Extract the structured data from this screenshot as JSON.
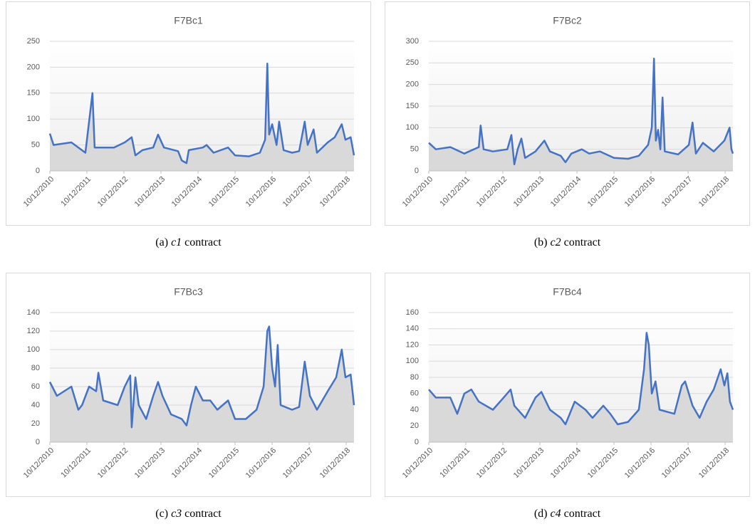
{
  "chart_data": [
    {
      "type": "line",
      "title": "F7Bc1",
      "caption": {
        "label": "(a)",
        "italic": "c1",
        "text": "contract"
      },
      "ylim": [
        0,
        250
      ],
      "yticks": [
        0,
        50,
        100,
        150,
        200,
        250
      ],
      "xlim": [
        2010.78,
        2018.99
      ],
      "xticks": [
        {
          "value": 2010.78,
          "label": "10/12/2010"
        },
        {
          "value": 2011.78,
          "label": "10/12/2011"
        },
        {
          "value": 2012.78,
          "label": "10/12/2012"
        },
        {
          "value": 2013.78,
          "label": "10/12/2013"
        },
        {
          "value": 2014.78,
          "label": "10/12/2014"
        },
        {
          "value": 2015.78,
          "label": "10/12/2015"
        },
        {
          "value": 2016.78,
          "label": "10/12/2016"
        },
        {
          "value": 2017.78,
          "label": "10/12/2017"
        },
        {
          "value": 2018.78,
          "label": "10/12/2018"
        }
      ],
      "grid": true,
      "x": [
        2010.78,
        2010.88,
        2011.36,
        2011.74,
        2011.93,
        2011.99,
        2012.51,
        2012.8,
        2012.99,
        2013.09,
        2013.28,
        2013.57,
        2013.7,
        2013.86,
        2014.24,
        2014.34,
        2014.47,
        2014.53,
        2014.91,
        2015.01,
        2015.2,
        2015.59,
        2015.78,
        2016.16,
        2016.45,
        2016.59,
        2016.65,
        2016.7,
        2016.78,
        2016.9,
        2016.97,
        2017.09,
        2017.32,
        2017.51,
        2017.66,
        2017.74,
        2017.9,
        2017.99,
        2018.28,
        2018.47,
        2018.66,
        2018.76,
        2018.9,
        2018.99
      ],
      "series": [
        {
          "color": "#4472c4",
          "values": [
            72,
            50,
            55,
            35,
            150,
            45,
            45,
            55,
            65,
            30,
            40,
            45,
            70,
            45,
            38,
            20,
            15,
            40,
            45,
            50,
            35,
            45,
            30,
            28,
            35,
            60,
            207,
            70,
            90,
            50,
            95,
            40,
            35,
            38,
            95,
            50,
            80,
            35,
            55,
            65,
            90,
            60,
            65,
            30
          ]
        }
      ]
    },
    {
      "type": "line",
      "title": "F7Bc2",
      "caption": {
        "label": "(b)",
        "italic": "c2",
        "text": "contract"
      },
      "ylim": [
        0,
        300
      ],
      "yticks": [
        0,
        50,
        100,
        150,
        200,
        250,
        300
      ],
      "xlim": [
        2010.78,
        2018.99
      ],
      "xticks": [
        {
          "value": 2010.78,
          "label": "10/12/2010"
        },
        {
          "value": 2011.78,
          "label": "10/12/2011"
        },
        {
          "value": 2012.78,
          "label": "10/12/2012"
        },
        {
          "value": 2013.78,
          "label": "10/12/2013"
        },
        {
          "value": 2014.78,
          "label": "10/12/2014"
        },
        {
          "value": 2015.78,
          "label": "10/12/2015"
        },
        {
          "value": 2016.78,
          "label": "10/12/2016"
        },
        {
          "value": 2017.78,
          "label": "10/12/2017"
        },
        {
          "value": 2018.78,
          "label": "10/12/2018"
        }
      ],
      "grid": true,
      "x": [
        2010.78,
        2010.97,
        2011.36,
        2011.74,
        2012.13,
        2012.18,
        2012.26,
        2012.51,
        2012.9,
        2013.01,
        2013.09,
        2013.18,
        2013.28,
        2013.38,
        2013.66,
        2013.9,
        2014.05,
        2014.34,
        2014.47,
        2014.63,
        2014.91,
        2015.11,
        2015.4,
        2015.78,
        2016.16,
        2016.45,
        2016.7,
        2016.8,
        2016.86,
        2016.91,
        2016.97,
        2017.03,
        2017.09,
        2017.15,
        2017.51,
        2017.8,
        2017.9,
        2017.99,
        2018.18,
        2018.47,
        2018.76,
        2018.9,
        2018.95,
        2018.99
      ],
      "series": [
        {
          "color": "#4472c4",
          "values": [
            65,
            50,
            55,
            40,
            55,
            105,
            50,
            45,
            50,
            83,
            15,
            50,
            75,
            30,
            45,
            70,
            45,
            35,
            20,
            40,
            50,
            40,
            45,
            30,
            28,
            35,
            60,
            100,
            260,
            70,
            95,
            50,
            170,
            45,
            38,
            60,
            112,
            40,
            65,
            45,
            70,
            100,
            50,
            40
          ]
        }
      ]
    },
    {
      "type": "line",
      "title": "F7Bc3",
      "caption": {
        "label": "(c)",
        "italic": "c3",
        "text": "contract"
      },
      "ylim": [
        0,
        140
      ],
      "yticks": [
        0,
        20,
        40,
        60,
        80,
        100,
        120,
        140
      ],
      "xlim": [
        2010.78,
        2018.99
      ],
      "xticks": [
        {
          "value": 2010.78,
          "label": "10/12/2010"
        },
        {
          "value": 2011.78,
          "label": "10/12/2011"
        },
        {
          "value": 2012.78,
          "label": "10/12/2012"
        },
        {
          "value": 2013.78,
          "label": "10/12/2013"
        },
        {
          "value": 2014.78,
          "label": "10/12/2014"
        },
        {
          "value": 2015.78,
          "label": "10/12/2015"
        },
        {
          "value": 2016.78,
          "label": "10/12/2016"
        },
        {
          "value": 2017.78,
          "label": "10/12/2017"
        },
        {
          "value": 2018.78,
          "label": "10/12/2018"
        }
      ],
      "grid": true,
      "x": [
        2010.78,
        2010.97,
        2011.36,
        2011.55,
        2011.65,
        2011.84,
        2012.03,
        2012.09,
        2012.22,
        2012.61,
        2012.8,
        2012.95,
        2012.99,
        2013.09,
        2013.18,
        2013.38,
        2013.57,
        2013.7,
        2013.82,
        2014.05,
        2014.34,
        2014.47,
        2014.59,
        2014.72,
        2014.91,
        2015.11,
        2015.3,
        2015.59,
        2015.78,
        2016.07,
        2016.36,
        2016.55,
        2016.65,
        2016.7,
        2016.78,
        2016.86,
        2016.93,
        2017.01,
        2017.32,
        2017.51,
        2017.66,
        2017.8,
        2017.99,
        2018.28,
        2018.51,
        2018.66,
        2018.76,
        2018.9,
        2018.99
      ],
      "series": [
        {
          "color": "#4472c4",
          "values": [
            65,
            50,
            60,
            35,
            40,
            60,
            55,
            75,
            45,
            40,
            60,
            72,
            16,
            70,
            40,
            25,
            50,
            65,
            50,
            30,
            25,
            18,
            40,
            60,
            45,
            45,
            35,
            45,
            25,
            25,
            35,
            60,
            120,
            125,
            80,
            60,
            105,
            40,
            35,
            38,
            87,
            50,
            35,
            55,
            70,
            100,
            70,
            73,
            40
          ]
        }
      ]
    },
    {
      "type": "line",
      "title": "F7Bc4",
      "caption": {
        "label": "(d)",
        "italic": "c4",
        "text": "contract"
      },
      "ylim": [
        0,
        160
      ],
      "yticks": [
        0,
        20,
        40,
        60,
        80,
        100,
        120,
        140,
        160
      ],
      "xlim": [
        2010.78,
        2018.99
      ],
      "xticks": [
        {
          "value": 2010.78,
          "label": "10/12/2010"
        },
        {
          "value": 2011.78,
          "label": "10/12/2011"
        },
        {
          "value": 2012.78,
          "label": "10/12/2012"
        },
        {
          "value": 2013.78,
          "label": "10/12/2013"
        },
        {
          "value": 2014.78,
          "label": "10/12/2014"
        },
        {
          "value": 2015.78,
          "label": "10/12/2015"
        },
        {
          "value": 2016.78,
          "label": "10/12/2016"
        },
        {
          "value": 2017.78,
          "label": "10/12/2017"
        },
        {
          "value": 2018.78,
          "label": "10/12/2018"
        }
      ],
      "grid": true,
      "x": [
        2010.78,
        2010.97,
        2011.36,
        2011.55,
        2011.74,
        2011.93,
        2012.13,
        2012.51,
        2012.8,
        2012.99,
        2013.09,
        2013.38,
        2013.66,
        2013.82,
        2014.05,
        2014.34,
        2014.47,
        2014.72,
        2015.01,
        2015.2,
        2015.49,
        2015.68,
        2015.88,
        2016.16,
        2016.45,
        2016.59,
        2016.66,
        2016.72,
        2016.8,
        2016.9,
        2017.01,
        2017.41,
        2017.61,
        2017.7,
        2017.9,
        2018.09,
        2018.28,
        2018.47,
        2018.66,
        2018.76,
        2018.84,
        2018.91,
        2018.99
      ],
      "series": [
        {
          "color": "#4472c4",
          "values": [
            65,
            55,
            55,
            35,
            60,
            65,
            50,
            40,
            55,
            65,
            45,
            30,
            55,
            62,
            40,
            30,
            22,
            50,
            40,
            30,
            45,
            35,
            22,
            25,
            40,
            90,
            135,
            120,
            60,
            75,
            40,
            35,
            70,
            75,
            45,
            30,
            50,
            65,
            90,
            70,
            85,
            50,
            40
          ]
        }
      ]
    }
  ]
}
